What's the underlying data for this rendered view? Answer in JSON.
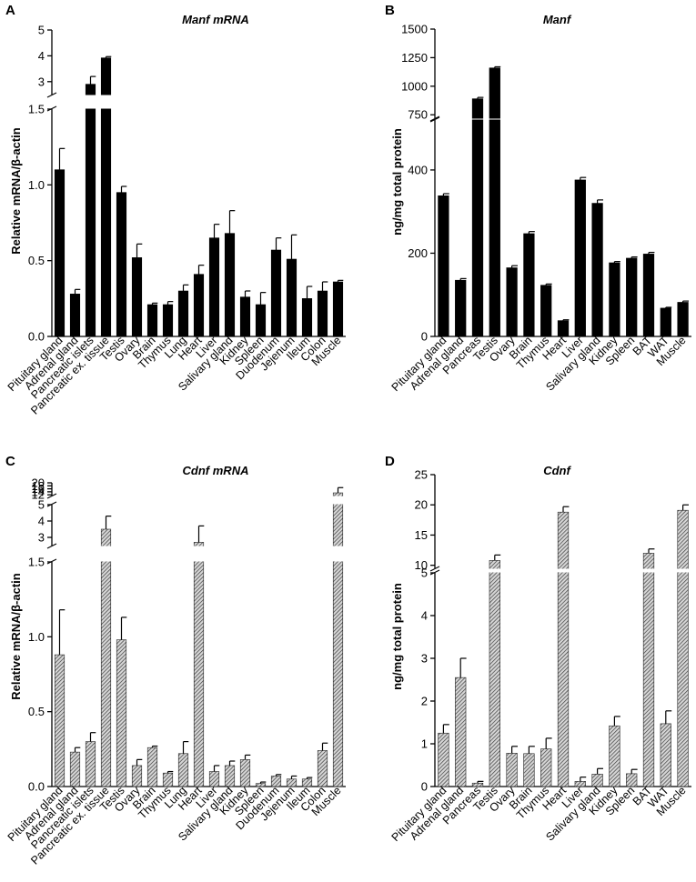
{
  "colors": {
    "solid_bar": "#000000",
    "hatched_bar": "#8a8a8a",
    "axis": "#000000"
  },
  "chart_data": [
    {
      "panel": "A",
      "type": "bar",
      "title": "Manf mRNA",
      "ylabel": "Relative mRNA/β-actin",
      "bar_style": "solid",
      "categories": [
        "Pituitary gland",
        "Adrenal gland",
        "Pancreatic islets",
        "Pancreatic ex. tissue",
        "Testis",
        "Ovary",
        "Brain",
        "Thymus",
        "Lung",
        "Heart",
        "Liver",
        "Salivary gland",
        "Kidney",
        "Spleen",
        "Duodenum",
        "Jejenum",
        "Ileum",
        "Colon",
        "Muscle"
      ],
      "values": [
        1.1,
        0.28,
        2.9,
        3.92,
        0.95,
        0.52,
        0.21,
        0.21,
        0.3,
        0.41,
        0.65,
        0.68,
        0.26,
        0.21,
        0.57,
        0.51,
        0.25,
        0.3,
        0.36
      ],
      "errors": [
        0.14,
        0.03,
        0.3,
        0.05,
        0.04,
        0.09,
        0.01,
        0.02,
        0.04,
        0.06,
        0.09,
        0.15,
        0.04,
        0.08,
        0.08,
        0.16,
        0.08,
        0.06,
        0.01
      ],
      "y_segments": [
        {
          "range": [
            0,
            1.5
          ],
          "ticks": [
            0.0,
            0.5,
            1.0,
            1.5
          ],
          "tick_labels": [
            "0.0",
            "0.5",
            "1.0",
            "1.5"
          ]
        },
        {
          "range": [
            2.5,
            5
          ],
          "ticks": [
            3,
            4,
            5
          ],
          "tick_labels": [
            "3",
            "4",
            "5"
          ]
        }
      ]
    },
    {
      "panel": "B",
      "type": "bar",
      "title": "Manf",
      "ylabel": "ng/mg total protein",
      "bar_style": "solid",
      "categories": [
        "Pituitary gland",
        "Adrenal gland",
        "Pancreas",
        "Testis",
        "Ovary",
        "Brain",
        "Thymus",
        "Heart",
        "Liver",
        "Salivary gland",
        "Kidney",
        "Spleen",
        "BAT",
        "WAT",
        "Muscle"
      ],
      "values": [
        338,
        135,
        890,
        1160,
        165,
        247,
        123,
        38,
        376,
        320,
        177,
        188,
        198,
        68,
        82
      ],
      "errors": [
        5,
        4,
        12,
        10,
        5,
        5,
        3,
        2,
        6,
        8,
        3,
        3,
        4,
        2,
        3
      ],
      "y_segments": [
        {
          "range": [
            0,
            520
          ],
          "ticks": [
            0,
            200,
            400
          ],
          "tick_labels": [
            "0",
            "200",
            "400"
          ]
        },
        {
          "range": [
            720,
            1500
          ],
          "ticks": [
            750,
            1000,
            1250,
            1500
          ],
          "tick_labels": [
            "750",
            "1000",
            "1250",
            "1500"
          ]
        }
      ]
    },
    {
      "panel": "C",
      "type": "bar",
      "title": "Cdnf mRNA",
      "ylabel": "Relative mRNA/β-actin",
      "bar_style": "hatched",
      "categories": [
        "Pituitary gland",
        "Adrenal gland",
        "Pancreatic islets",
        "Pancreatic ex. tissue",
        "Testis",
        "Ovary",
        "Brain",
        "Thymus",
        "Lung",
        "Heart",
        "Liver",
        "Salivary gland",
        "Kidney",
        "Spleen",
        "Duodenum",
        "Jejenum",
        "Ileum",
        "Colon",
        "Muscle"
      ],
      "values": [
        0.88,
        0.23,
        0.3,
        3.5,
        0.98,
        0.14,
        0.26,
        0.09,
        0.22,
        2.7,
        0.1,
        0.14,
        0.18,
        0.02,
        0.07,
        0.05,
        0.05,
        0.24,
        13.3
      ],
      "errors": [
        0.3,
        0.03,
        0.06,
        0.8,
        0.15,
        0.04,
        0.01,
        0.01,
        0.08,
        1.0,
        0.04,
        0.03,
        0.03,
        0.01,
        0.01,
        0.02,
        0.01,
        0.05,
        3.5
      ],
      "y_segments": [
        {
          "range": [
            0,
            1.5
          ],
          "ticks": [
            0.0,
            0.5,
            1.0,
            1.5
          ],
          "tick_labels": [
            "0.0",
            "0.5",
            "1.0",
            "1.5"
          ]
        },
        {
          "range": [
            2.5,
            5
          ],
          "ticks": [
            3,
            4,
            5
          ],
          "tick_labels": [
            "3",
            "4",
            "5"
          ]
        },
        {
          "range": [
            11.5,
            20
          ],
          "ticks": [
            12,
            14,
            16,
            18,
            20
          ],
          "tick_labels": [
            "12",
            "14",
            "16",
            "18",
            "20"
          ]
        }
      ]
    },
    {
      "panel": "D",
      "type": "bar",
      "title": "Cdnf",
      "ylabel": "ng/mg total protein",
      "bar_style": "hatched",
      "categories": [
        "Pituitary gland",
        "Adrenal gland",
        "Pancreas",
        "Testis",
        "Ovary",
        "Brain",
        "Thymus",
        "Heart",
        "Liver",
        "Salivary gland",
        "Kidney",
        "Spleen",
        "BAT",
        "WAT",
        "Muscle"
      ],
      "values": [
        1.25,
        2.55,
        0.08,
        10.8,
        0.78,
        0.77,
        0.88,
        18.8,
        0.12,
        0.29,
        1.42,
        0.3,
        12.0,
        1.47,
        19.1
      ],
      "errors": [
        0.2,
        0.45,
        0.04,
        0.9,
        0.16,
        0.17,
        0.25,
        0.9,
        0.1,
        0.13,
        0.22,
        0.1,
        0.7,
        0.3,
        0.9
      ],
      "y_segments": [
        {
          "range": [
            0,
            5
          ],
          "ticks": [
            0,
            1,
            2,
            3,
            4,
            5
          ],
          "tick_labels": [
            "0",
            "1",
            "2",
            "3",
            "4",
            "5"
          ]
        },
        {
          "range": [
            9.5,
            25
          ],
          "ticks": [
            10,
            15,
            20,
            25
          ],
          "tick_labels": [
            "10",
            "15",
            "20",
            "25"
          ]
        }
      ]
    }
  ]
}
